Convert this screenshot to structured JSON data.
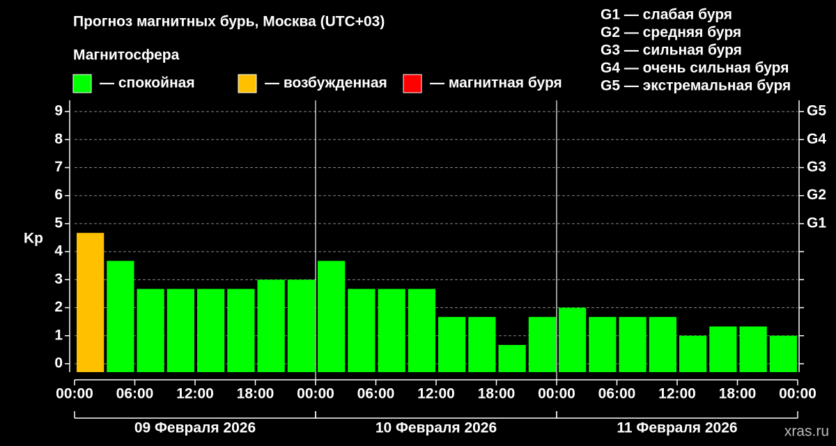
{
  "chart_data": {
    "type": "bar",
    "title": "Прогноз магнитных бурь, Москва (UTC+03)",
    "legend_title": "Магнитосфера",
    "legend": [
      {
        "label": "— спокойная",
        "color": "#00ff00"
      },
      {
        "label": "— возбужденная",
        "color": "#ffc000"
      },
      {
        "label": "— магнитная буря",
        "color": "#ff0000"
      }
    ],
    "g_scale": [
      "G1 — слабая буря",
      "G2 — средняя буря",
      "G3 — сильная буря",
      "G4 — очень сильная буря",
      "G5 — экстремальная буря"
    ],
    "ylabel": "Kp",
    "categories": [
      null,
      null,
      null,
      null,
      null,
      null,
      null,
      null,
      null,
      null,
      null,
      null,
      null,
      null,
      null,
      null,
      null,
      null,
      null,
      null,
      null,
      null,
      null,
      null
    ],
    "values": [
      4.67,
      3.67,
      2.67,
      2.67,
      2.67,
      2.67,
      3.0,
      3.0,
      3.67,
      2.67,
      2.67,
      2.67,
      1.67,
      1.67,
      0.67,
      1.67,
      2.0,
      1.67,
      1.67,
      1.67,
      1.0,
      1.33,
      1.33,
      1.0
    ],
    "colors": [
      "#ffc000",
      "#00ff00",
      "#00ff00",
      "#00ff00",
      "#00ff00",
      "#00ff00",
      "#00ff00",
      "#00ff00",
      "#00ff00",
      "#00ff00",
      "#00ff00",
      "#00ff00",
      "#00ff00",
      "#00ff00",
      "#00ff00",
      "#00ff00",
      "#00ff00",
      "#00ff00",
      "#00ff00",
      "#00ff00",
      "#00ff00",
      "#00ff00",
      "#00ff00",
      "#00ff00"
    ],
    "xlim": [
      0,
      72
    ],
    "xticks": [
      {
        "value": 0,
        "label": "00:00"
      },
      {
        "value": 6,
        "label": "06:00"
      },
      {
        "value": 12,
        "label": "12:00"
      },
      {
        "value": 18,
        "label": "18:00"
      },
      {
        "value": 24,
        "label": "00:00"
      },
      {
        "value": 30,
        "label": "06:00"
      },
      {
        "value": 36,
        "label": "12:00"
      },
      {
        "value": 42,
        "label": "18:00"
      },
      {
        "value": 48,
        "label": "00:00"
      },
      {
        "value": 54,
        "label": "06:00"
      },
      {
        "value": 60,
        "label": "12:00"
      },
      {
        "value": 66,
        "label": "18:00"
      },
      {
        "value": 72,
        "label": "00:00"
      }
    ],
    "days": [
      "09 Февраля 2026",
      "10 Февраля 2026",
      "11 Февраля 2026"
    ],
    "ylim": [
      -0.3,
      9.4
    ],
    "yticks": [
      0,
      1,
      2,
      3,
      4,
      5,
      6,
      7,
      8,
      9
    ],
    "y2lim": [
      -0.3,
      9.4
    ],
    "y2ticks": [
      {
        "value": 5,
        "label": "G1"
      },
      {
        "value": 6,
        "label": "G2"
      },
      {
        "value": 7,
        "label": "G3"
      },
      {
        "value": 8,
        "label": "G4"
      },
      {
        "value": 9,
        "label": "G5"
      }
    ],
    "grid": true,
    "watermark": "xras.ru"
  }
}
